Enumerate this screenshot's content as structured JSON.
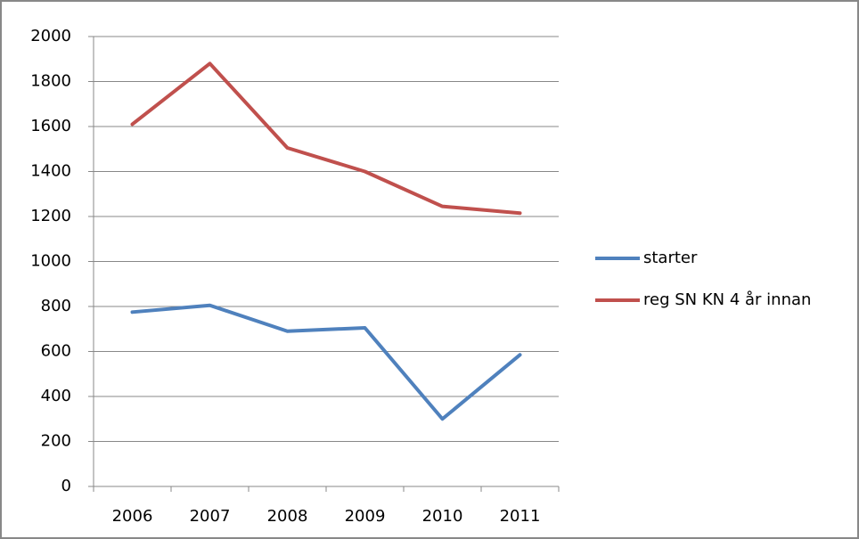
{
  "chart_data": {
    "type": "line",
    "categories": [
      "2006",
      "2007",
      "2008",
      "2009",
      "2010",
      "2011"
    ],
    "series": [
      {
        "name": "starter",
        "color": "#4f81bd",
        "values": [
          775,
          805,
          690,
          705,
          300,
          585
        ]
      },
      {
        "name": "reg SN KN 4 år innan",
        "color": "#c0504d",
        "values": [
          1610,
          1880,
          1505,
          1400,
          1245,
          1215
        ]
      }
    ],
    "ylim": [
      0,
      2000
    ],
    "yticks": [
      0,
      200,
      400,
      600,
      800,
      1000,
      1200,
      1400,
      1600,
      1800,
      2000
    ],
    "grid": true,
    "legend": "right"
  }
}
